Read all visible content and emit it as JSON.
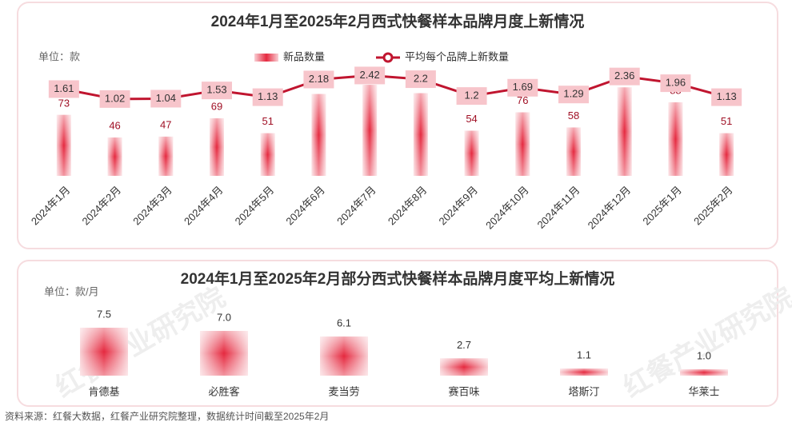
{
  "chart_data": [
    {
      "type": "bar",
      "title": "2024年1月至2025年2月西式快餐样本品牌月度上新情况",
      "y_label": "单位：款",
      "categories": [
        "2024年1月",
        "2024年2月",
        "2024年3月",
        "2024年4月",
        "2024年5月",
        "2024年6月",
        "2024年7月",
        "2024年8月",
        "2024年9月",
        "2024年10月",
        "2024年11月",
        "2024年12月",
        "2025年1月",
        "2025年2月"
      ],
      "series": [
        {
          "name": "新品数量",
          "type": "bar",
          "color": "#e8384f",
          "values": [
            73,
            46,
            47,
            69,
            51,
            98,
            109,
            99,
            54,
            76,
            58,
            106,
            88,
            51
          ]
        },
        {
          "name": "平均每个品牌上新数量",
          "type": "line",
          "axis": "y2",
          "color": "#c0152f",
          "values": [
            1.61,
            1.02,
            1.04,
            1.53,
            1.13,
            2.18,
            2.42,
            2.2,
            1.2,
            1.69,
            1.29,
            2.36,
            1.96,
            1.13
          ]
        }
      ],
      "ylim": [
        0,
        115
      ],
      "y2lim": [
        -2.5,
        3.2
      ],
      "legend": "top"
    },
    {
      "type": "bar",
      "title": "2024年1月至2025年2月部分西式快餐样本品牌月度平均上新情况",
      "y_label": "单位：款/月",
      "categories": [
        "肯德基",
        "必胜客",
        "麦当劳",
        "赛百味",
        "塔斯汀",
        "华莱士"
      ],
      "values": [
        7.5,
        7.0,
        6.1,
        2.7,
        1.1,
        1.0
      ],
      "value_labels": [
        "7.5",
        "7.0",
        "6.1",
        "2.7",
        "1.1",
        "1.0"
      ],
      "color": "#e8384f",
      "ylim": [
        0,
        8
      ]
    }
  ],
  "watermark": "红餐产业研究院",
  "source": "资料来源：红餐大数据，红餐产业研究院整理，数据统计时间截至2025年2月"
}
